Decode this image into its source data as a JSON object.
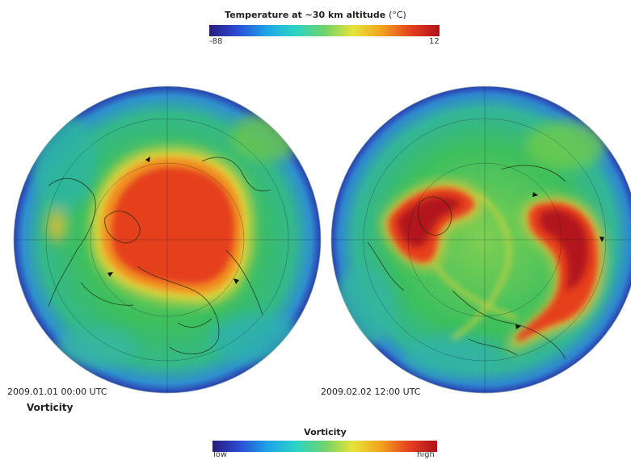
{
  "temperature_colorbar": {
    "title": "Temperature at ~30 km altitude",
    "unit": "(°C)",
    "min_label": "-88",
    "max_label": "12",
    "colors": [
      "#2b1b7f",
      "#2a4fd6",
      "#1ea6e8",
      "#2cd3c4",
      "#6fd36b",
      "#e7e43a",
      "#f2a21d",
      "#e5401f",
      "#b1101a"
    ]
  },
  "left_globe": {
    "timestamp": "2009.01.01 00:00 UTC",
    "caption": "Vorticity"
  },
  "right_globe": {
    "timestamp": "2009.02.02 12:00 UTC"
  },
  "vorticity_colorbar": {
    "title": "Vorticity",
    "low_label": "low",
    "high_label": "high"
  },
  "palette": {
    "background_field": "#3fbf5a",
    "warm_core": "#e23d1f",
    "hot_core": "#b2121a",
    "cold_edge": "#2a3fb0",
    "coastline": "#1a2a10"
  }
}
